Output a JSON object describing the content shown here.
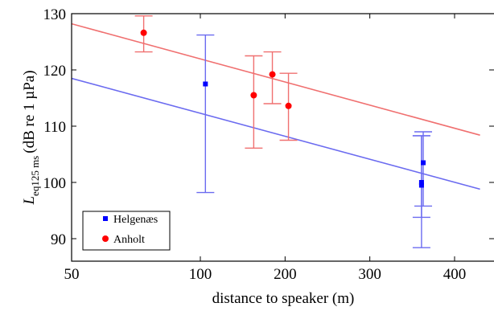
{
  "chart_data": {
    "type": "scatter",
    "xlabel": "distance to speaker (m)",
    "ylabel": {
      "base": "L",
      "sub": "eq125 ms",
      "rest": "(dB re 1 µPa)"
    },
    "xlim": [
      50,
      430
    ],
    "ylim": [
      86,
      130
    ],
    "xticks": [
      50,
      100,
      200,
      300,
      400
    ],
    "xtick_labels": [
      "50",
      "100",
      "200",
      "300",
      "400"
    ],
    "yticks": [
      90,
      100,
      110,
      120,
      130
    ],
    "ytick_labels": [
      "90",
      "100",
      "110",
      "120",
      "130"
    ],
    "grid": false,
    "legend_position": "bottom-left",
    "series": [
      {
        "name": "Helgenæs",
        "color": "#0000ff",
        "line_color": "#6b6bf0",
        "marker": "square",
        "points": [
          {
            "x": 106,
            "y": 117.5,
            "err_low": 98.2,
            "err_high": 126.2
          },
          {
            "x": 361,
            "y": 100.0,
            "err_low": 93.8,
            "err_high": 108.3
          },
          {
            "x": 361,
            "y": 99.5,
            "err_low": 88.4,
            "err_high": 108.3
          },
          {
            "x": 363,
            "y": 103.5,
            "err_low": 95.8,
            "err_high": 109.0
          }
        ],
        "fit": {
          "x": [
            50,
            430
          ],
          "y": [
            118.5,
            98.8
          ]
        }
      },
      {
        "name": "Anholt",
        "color": "#ff0000",
        "line_color": "#f07070",
        "marker": "circle",
        "points": [
          {
            "x": 78,
            "y": 126.6,
            "err_low": 123.2,
            "err_high": 129.6
          },
          {
            "x": 163,
            "y": 115.5,
            "err_low": 106.1,
            "err_high": 122.5
          },
          {
            "x": 185,
            "y": 119.2,
            "err_low": 114.0,
            "err_high": 123.2
          },
          {
            "x": 204,
            "y": 113.6,
            "err_low": 107.5,
            "err_high": 119.4
          }
        ],
        "fit": {
          "x": [
            50,
            430
          ],
          "y": [
            128.2,
            108.4
          ]
        }
      }
    ]
  }
}
